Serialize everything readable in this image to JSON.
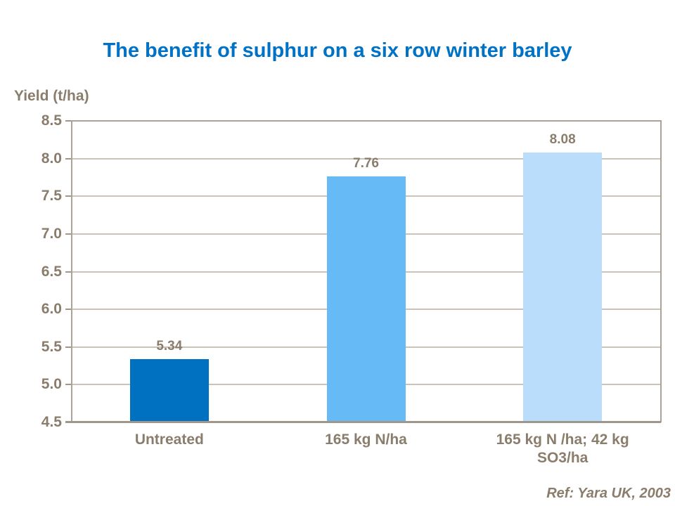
{
  "title": "The benefit of sulphur on a six row winter barley",
  "ylabel": "Yield (t/ha)",
  "footer": {
    "ref": "Ref: Yara UK, 2003"
  },
  "colors": {
    "title_blue": "#0072C6",
    "axis_text_brown": "#8A7D6C",
    "gridline": "#CCC3B8",
    "plot_border": "#ACA296",
    "baseline": "#A0968A",
    "bar_untreated": "#0071C1",
    "bar_n_only": "#66BBF7",
    "bar_n_plus_s": "#B9DDFA"
  },
  "chart_data": {
    "type": "bar",
    "title": "The benefit of sulphur on a six row winter barley",
    "xlabel": "",
    "ylabel": "Yield (t/ha)",
    "categories": [
      "Untreated",
      "165 kg N/ha",
      "165 kg N /ha; 42 kg\nSO3/ha"
    ],
    "values": [
      5.34,
      7.76,
      8.08
    ],
    "data_labels": [
      "5.34",
      "7.76",
      "8.08"
    ],
    "bar_colors": [
      "#0071C1",
      "#66BBF7",
      "#B9DDFA"
    ],
    "ylim": [
      4.5,
      8.5
    ],
    "ytick_step": 0.5,
    "ytick_labels": [
      "4.5",
      "5.0",
      "5.5",
      "6.0",
      "6.5",
      "7.0",
      "7.5",
      "8.0",
      "8.5"
    ],
    "grid": true,
    "legend": false,
    "annotation": "Ref: Yara UK, 2003"
  }
}
